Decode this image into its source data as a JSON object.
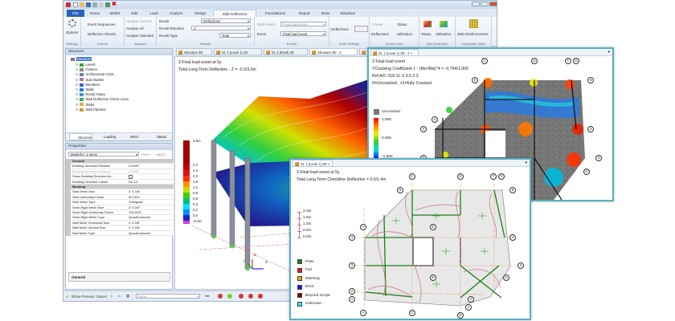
{
  "ribbon": {
    "tabs": [
      "File",
      "Home",
      "Model",
      "Edit",
      "Load",
      "Analyze",
      "Design",
      "Slab Deflection",
      "Foundations",
      "Report",
      "Draw",
      "Windows"
    ],
    "active_tab": "Slab Deflection",
    "settings": {
      "options": "Options",
      "label": "Settings"
    },
    "events1": {
      "event_sequences": "Event Sequences",
      "deflection_checks": "Deflection Checks",
      "label": "Events"
    },
    "analyse": {
      "current": "Analyse Current",
      "all": "Analyse All",
      "selected": "Analyse Selected",
      "label": "Analyse"
    },
    "results": {
      "result_label": "Result",
      "result_value": "Deflections",
      "direction_label": "Result Direction",
      "direction_value": "Z",
      "type_label": "Result Type",
      "type_value": "Total",
      "label": "Results"
    },
    "events2": {
      "start_label": "Start Event",
      "start_value": "Final load event",
      "event_label": "Event",
      "event_value": "Final load event",
      "label": "Events"
    },
    "scale": {
      "deflections": "Deflections",
      "label": "Scale Settings"
    },
    "checklines": {
      "create": "Create",
      "deflections": "Deflections",
      "status": "Status",
      "utilisation": "Utilisation",
      "label": "Check Lines"
    },
    "slabdefl": {
      "status": "Status",
      "utilisation": "Utilisation",
      "label": "Slab Deflection"
    },
    "state": {
      "slab_reinforcement": "Slab Reinforcement",
      "label": "Show/Alter State"
    }
  },
  "structure_panel": {
    "title": "Structure",
    "root": "Structure",
    "items": [
      "Levels",
      "Frames",
      "Architectural Grids",
      "Sub Models",
      "Members",
      "Walls",
      "Result Strips",
      "Slab Deflection Check Lines",
      "Slabs",
      "Slab Patches"
    ],
    "tabs": [
      "Structure",
      "Loading",
      "Wind",
      "Status"
    ]
  },
  "properties": {
    "title": "Properties",
    "selector": "Model(s): 1 items",
    "save": "Save...",
    "apply": "Apply...",
    "sections": [
      {
        "name": "General",
        "rows": [
          [
            "Building Direction Rotation",
            "0.0000°"
          ],
          [
            "Building Direction Rotation",
            "0.0000°"
          ],
          [
            "Show Building Direction Arr...",
            ""
          ],
          [
            "Building Direction Labels",
            "Dir 1/2"
          ]
        ]
      },
      {
        "name": "Meshing",
        "rows": [
          [
            "Slab Mesh Size",
            "3' 3 3/8\""
          ],
          [
            "Slab Uniformity Factor",
            "50.00%"
          ],
          [
            "Slab Mesh Type",
            "Triangular"
          ],
          [
            "Semi-Rigid Mesh Size",
            "3' 3 3/8\""
          ],
          [
            "Semi-Rigid Uniformity Factor",
            "100.00%"
          ],
          [
            "Semi-Rigid Mesh Type",
            "QuadDominant"
          ],
          [
            "Wall Mesh Horizontal Size",
            "3' 3 3/8\""
          ],
          [
            "Wall Mesh Vertical Size",
            "3' 3 3/8\""
          ],
          [
            "Wall Mesh Type",
            "QuadDominant"
          ]
        ]
      }
    ],
    "description_title": "General"
  },
  "statusbar": {
    "show_process": "Show Process",
    "cancel": "Cancel",
    "filter": "None"
  },
  "view_tabs": [
    "Structure 3D",
    "St. 1 (Level 1) 2D",
    "St. 2 (Roof) 2D",
    "Structure 3D - 2",
    "St. 1 (Lev..."
  ],
  "view3d": {
    "line1": "3 Final load event at 5y",
    "line2": "Total Long Term Deflection - Z = -0.2/3.6in",
    "legend": [
      "3.6in",
      "2.4",
      "2.2",
      "2.0",
      "1.6",
      "1.2",
      "0.9",
      "0.6",
      "0.3",
      "0.2",
      "0.0",
      "-0.2in"
    ],
    "legend_colors": [
      "#a00000",
      "#c80000",
      "#e01010",
      "#ff3000",
      "#ff9000",
      "#c8e000",
      "#40d000",
      "#00c080",
      "#00e0ff",
      "#0090ff",
      "#2020d0",
      "#d040d0"
    ],
    "axes": [
      "X",
      "Y",
      "Z"
    ]
  },
  "cracking_window": {
    "tab": "St. 1 (Level 1) 2D - 2",
    "line1": "3 Final load event",
    "line2": "YCracking Coefficient 1 - (Mcr/Ma)^4 = -0.794/1.000",
    "line3": "Ref ACI 318-11 cl 9.5.2.3",
    "line4": "0=Uncracked , ±1=fully Cracked",
    "legend_uncracked": "Uncracked",
    "legend_values": [
      "1.000",
      "0.000",
      "-1.000"
    ]
  },
  "checkline_window": {
    "tab": "St. 1 (Level 1) 2D",
    "line1": "3 Final load event at 5y",
    "line2": "Total Long Term Checkline Deflection = 0.0/1.4in",
    "scale": [
      "2.0in",
      "1.5in",
      "1.0in",
      "0.5in",
      "0.0in"
    ],
    "legend": [
      {
        "label": "Pass",
        "color": "#1a7f1a"
      },
      {
        "label": "Fail",
        "color": "#ff1010"
      },
      {
        "label": "Warning",
        "color": "#ffa500"
      },
      {
        "label": "Error",
        "color": "#1010ff"
      },
      {
        "label": "Beyond Scope",
        "color": "#8b0000"
      },
      {
        "label": "Unknown",
        "color": "#20f0f0"
      }
    ]
  },
  "grid_labels": {
    "A": "A",
    "C": "C",
    "D": "D",
    "E": "E",
    "F": "F",
    "G": "G",
    "r1": "1",
    "r2": "2",
    "r3": "3",
    "r4": "4",
    "r6": "6"
  }
}
